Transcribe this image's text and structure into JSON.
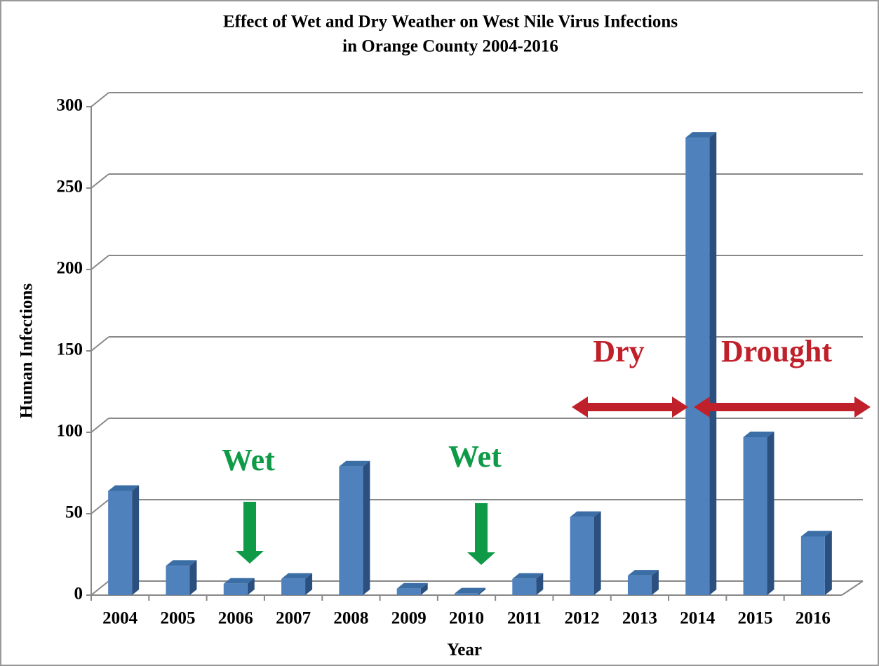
{
  "chart_data": {
    "type": "bar",
    "title": [
      "Effect of Wet and Dry Weather on West Nile Virus Infections",
      "in Orange County 2004-2016"
    ],
    "x_label": "Year",
    "y_label": "Human Infections",
    "categories": [
      "2004",
      "2005",
      "2006",
      "2007",
      "2008",
      "2009",
      "2010",
      "2011",
      "2012",
      "2013",
      "2014",
      "2015",
      "2016"
    ],
    "values": [
      64,
      18,
      7,
      10,
      79,
      4,
      1,
      10,
      48,
      12,
      281,
      97,
      36
    ],
    "color": "#4f81bd",
    "ylim": [
      0,
      300
    ],
    "yticks": [
      0,
      50,
      100,
      150,
      200,
      250,
      300
    ],
    "grid": true,
    "annotations": [
      "Wet",
      "Wet",
      "Dry",
      "Drought"
    ]
  }
}
